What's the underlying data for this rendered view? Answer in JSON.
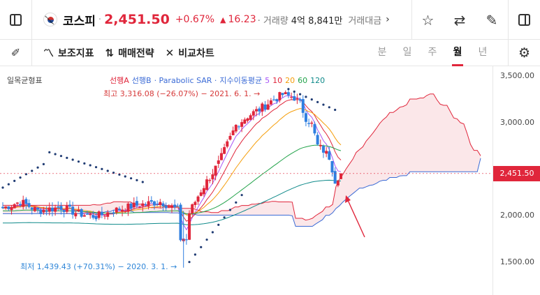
{
  "ticker": {
    "name": "코스피",
    "price": "2,451.50",
    "change_pct": "+0.67%",
    "change_arrow": "▲",
    "change_abs": "16.23",
    "volume_label": "· 거래량",
    "volume_value": "4억 8,841만",
    "amount_label": "거래대금",
    "more": "›"
  },
  "toolbar": {
    "indicator_label": "보조지표",
    "strategy_label": "매매전략",
    "compare_label": "비교차트",
    "periods": [
      "분",
      "일",
      "주",
      "월",
      "년"
    ],
    "active_period": "월"
  },
  "legend": {
    "title": "일목균형표",
    "items": [
      {
        "label": "선행A",
        "color": "#e0263b"
      },
      {
        "label": "선행B",
        "color": "#3b6bd6"
      },
      {
        "label": "· Parabolic SAR ·",
        "color": "#3b6bd6"
      },
      {
        "label": "지수이동평균",
        "color": "#3b6bd6"
      },
      {
        "label": "5",
        "color": "#a855f7"
      },
      {
        "label": "10",
        "color": "#e0263b"
      },
      {
        "label": "20",
        "color": "#f59e0b"
      },
      {
        "label": "60",
        "color": "#22a34a"
      },
      {
        "label": "120",
        "color": "#0f8a8a"
      }
    ]
  },
  "annotations": {
    "high": "최고 3,316.08 (−26.07%) − 2021. 6. 1. →",
    "low": "최저 1,439.43 (+70.31%) − 2020. 3. 1. →"
  },
  "y_axis": {
    "labels": [
      "3,500.00",
      "3,000.00",
      "2,000.00",
      "1,500.00"
    ],
    "current_price": "2,451.50"
  },
  "colors": {
    "up": "#e0263b",
    "down": "#2f7fe0",
    "accent": "#e0263b"
  },
  "chart_data": {
    "type": "candlestick",
    "ylim": [
      1250,
      3650
    ],
    "y_ticks": [
      3500,
      3000,
      2000,
      1500
    ],
    "current_price": 2451.5,
    "high": {
      "value": 3316.08,
      "date": "2021. 6. 1."
    },
    "low": {
      "value": 1439.43,
      "date": "2020. 3. 1."
    }
  }
}
